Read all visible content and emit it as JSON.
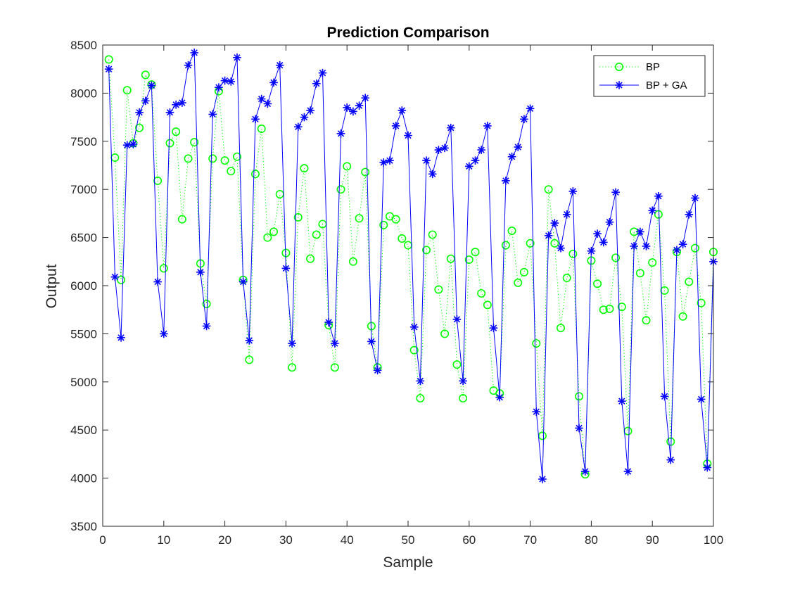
{
  "chart_data": {
    "type": "line",
    "title": "Prediction Comparison",
    "xlabel": "Sample",
    "ylabel": "Output",
    "xlim": [
      0,
      100
    ],
    "ylim": [
      3500,
      8500
    ],
    "xticks": [
      0,
      10,
      20,
      30,
      40,
      50,
      60,
      70,
      80,
      90,
      100
    ],
    "yticks": [
      3500,
      4000,
      4500,
      5000,
      5500,
      6000,
      6500,
      7000,
      7500,
      8000,
      8500
    ],
    "grid": false,
    "legend": "top-right",
    "x": [
      1,
      2,
      3,
      4,
      5,
      6,
      7,
      8,
      9,
      10,
      11,
      12,
      13,
      14,
      15,
      16,
      17,
      18,
      19,
      20,
      21,
      22,
      23,
      24,
      25,
      26,
      27,
      28,
      29,
      30,
      31,
      32,
      33,
      34,
      35,
      36,
      37,
      38,
      39,
      40,
      41,
      42,
      43,
      44,
      45,
      46,
      47,
      48,
      49,
      50,
      51,
      52,
      53,
      54,
      55,
      56,
      57,
      58,
      59,
      60,
      61,
      62,
      63,
      64,
      65,
      66,
      67,
      68,
      69,
      70,
      71,
      72,
      73,
      74,
      75,
      76,
      77,
      78,
      79,
      80,
      81,
      82,
      83,
      84,
      85,
      86,
      87,
      88,
      89,
      90,
      91,
      92,
      93,
      94,
      95,
      96,
      97,
      98,
      99,
      100
    ],
    "series": [
      {
        "name": "BP",
        "color": "#00ff00",
        "line_style": "dotted",
        "marker": "circle",
        "values": [
          8350,
          7330,
          6060,
          8030,
          7480,
          7640,
          8190,
          8090,
          7090,
          6180,
          7480,
          7600,
          6690,
          7320,
          7490,
          6230,
          5810,
          7320,
          8020,
          7300,
          7190,
          7340,
          6060,
          5230,
          7160,
          7630,
          6500,
          6560,
          6950,
          6340,
          5150,
          6710,
          7220,
          6280,
          6530,
          6640,
          5590,
          5150,
          7000,
          7240,
          6250,
          6700,
          7180,
          5580,
          5150,
          6630,
          6720,
          6690,
          6490,
          6420,
          5330,
          4830,
          6370,
          6530,
          5960,
          5500,
          6280,
          5180,
          4830,
          6270,
          6350,
          5920,
          5800,
          4910,
          4880,
          6420,
          6570,
          6030,
          6140,
          6440,
          5400,
          4440,
          7000,
          6440,
          5560,
          6080,
          6330,
          4850,
          4040,
          6260,
          6020,
          5750,
          5760,
          6290,
          5780,
          4490,
          6560,
          6130,
          5640,
          6240,
          6740,
          5950,
          4380,
          6350,
          5680,
          6040,
          6390,
          5820,
          4150,
          6350
        ]
      },
      {
        "name": "BP + GA",
        "color": "#0000ff",
        "line_style": "solid",
        "marker": "asterisk",
        "values": [
          8250,
          6090,
          5460,
          7460,
          7470,
          7800,
          7920,
          8080,
          6040,
          5500,
          7800,
          7880,
          7900,
          8290,
          8420,
          6140,
          5580,
          7780,
          8060,
          8130,
          8120,
          8370,
          6040,
          5430,
          7730,
          7940,
          7890,
          8110,
          8290,
          6180,
          5400,
          7650,
          7750,
          7820,
          8100,
          8210,
          5620,
          5400,
          7580,
          7850,
          7810,
          7870,
          7950,
          5420,
          5120,
          7280,
          7300,
          7660,
          7820,
          7560,
          5570,
          5010,
          7300,
          7160,
          7410,
          7430,
          7640,
          5650,
          5010,
          7240,
          7300,
          7410,
          7660,
          5560,
          4840,
          7090,
          7340,
          7440,
          7730,
          7840,
          4690,
          3990,
          6520,
          6650,
          6390,
          6740,
          6980,
          4520,
          4070,
          6360,
          6540,
          6450,
          6660,
          6970,
          4800,
          4070,
          6410,
          6560,
          6410,
          6780,
          6930,
          4850,
          4190,
          6370,
          6430,
          6740,
          6910,
          4820,
          4110,
          6250
        ]
      }
    ]
  }
}
